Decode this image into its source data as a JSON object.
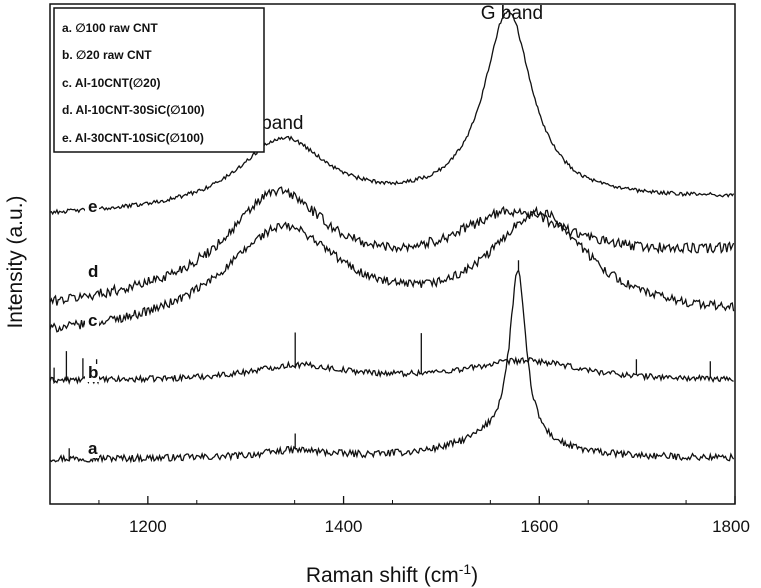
{
  "chart_data": {
    "type": "line",
    "title": "",
    "xlabel": "Raman shift (cm",
    "xlabel_sup": "-1",
    "xlabel_close": ")",
    "ylabel": "Intensity (a.u.)",
    "xlim": [
      1100,
      1800
    ],
    "xticks": [
      1200,
      1400,
      1600,
      1800
    ],
    "ylim": [
      0,
      100
    ],
    "yticks_shown": false,
    "grid": false,
    "legend_position": "top-left",
    "legend": [
      "a. ∅100 raw CNT",
      "b. ∅20 raw CNT",
      "c. Al-10CNT(∅20)",
      "d. Al-10CNT-30SiC(∅100)",
      "e. Al-30CNT-10SiC(∅100)"
    ],
    "annotations": [
      {
        "text": "D band",
        "x": 1340,
        "y": 75
      },
      {
        "text": "G band",
        "x": 1572,
        "y": 97
      }
    ],
    "series": [
      {
        "name": "a",
        "baseline": 9,
        "noise": 0.7,
        "spikes": [
          [
            1120,
            2.5
          ],
          [
            1352,
            3
          ],
          [
            1580,
            2
          ]
        ],
        "peaks": [
          {
            "center": 1350,
            "height": 1.5,
            "width": 40
          },
          {
            "center": 1578,
            "height": 34,
            "width": 10
          },
          {
            "center": 1560,
            "height": 4,
            "width": 55
          }
        ]
      },
      {
        "name": "b",
        "baseline": 24.5,
        "noise": 0.6,
        "spikes": [
          [
            1105,
            3
          ],
          [
            1118,
            6
          ],
          [
            1135,
            4
          ],
          [
            1148,
            4
          ],
          [
            1352,
            7
          ],
          [
            1480,
            8
          ],
          [
            1700,
            3
          ],
          [
            1775,
            3
          ]
        ],
        "peaks": [
          {
            "center": 1352,
            "height": 3,
            "width": 60
          },
          {
            "center": 1586,
            "height": 4,
            "width": 70
          }
        ]
      },
      {
        "name": "c",
        "baseline": 33,
        "slope": 4,
        "noise": 0.9,
        "spikes": [],
        "peaks": [
          {
            "center": 1338,
            "height": 20,
            "width": 75
          },
          {
            "center": 1600,
            "height": 21,
            "width": 62
          }
        ]
      },
      {
        "name": "d",
        "baseline": 39,
        "slope": 11,
        "noise": 1.0,
        "spikes": [],
        "peaks": [
          {
            "center": 1332,
            "height": 19,
            "width": 62
          },
          {
            "center": 1572,
            "height": 11,
            "width": 72
          }
        ]
      },
      {
        "name": "e",
        "baseline": 57.5,
        "slope": 3.5,
        "noise": 0.4,
        "spikes": [],
        "peaks": [
          {
            "center": 1338,
            "height": 14,
            "width": 55
          },
          {
            "center": 1568,
            "height": 38,
            "width": 30
          }
        ]
      }
    ]
  }
}
